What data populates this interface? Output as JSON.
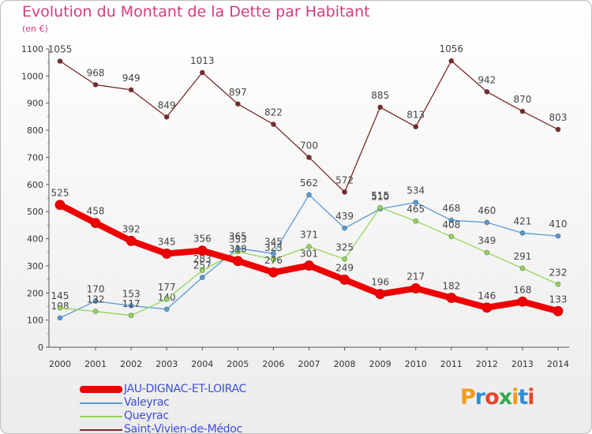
{
  "title": "Evolution du Montant de la Dette par Habitant",
  "unit": "(en €)",
  "logo": {
    "text": "Proxiti",
    "colors": [
      "#f39a1a",
      "#2c8fd6",
      "#e8452c",
      "#35a84a",
      "#f39a1a",
      "#2c8fd6",
      "#e8452c"
    ]
  },
  "chart_data": {
    "type": "line",
    "title": "Evolution du Montant de la Dette par Habitant",
    "ylabel": "(en €)",
    "xlabel": "",
    "x": [
      2000,
      2001,
      2002,
      2003,
      2004,
      2005,
      2006,
      2007,
      2008,
      2009,
      2010,
      2011,
      2012,
      2013,
      2014
    ],
    "ylim": [
      0,
      1100
    ],
    "yticks": [
      0,
      100,
      200,
      300,
      400,
      500,
      600,
      700,
      800,
      900,
      1000,
      1100
    ],
    "grid": false,
    "legend": "bottom-left",
    "series": [
      {
        "name": "JAU-DIGNAC-ET-LOIRAC",
        "color": "#ee0000",
        "style": "thick",
        "values": [
          525,
          458,
          392,
          345,
          356,
          318,
          276,
          301,
          249,
          196,
          217,
          182,
          146,
          168,
          133
        ]
      },
      {
        "name": "Valeyrac",
        "color": "#5a9ad6",
        "style": "thin",
        "values": [
          108,
          170,
          153,
          140,
          257,
          365,
          345,
          562,
          439,
          510,
          534,
          468,
          460,
          421,
          410
        ]
      },
      {
        "name": "Queyrac",
        "color": "#93d65a",
        "style": "thin",
        "values": [
          145,
          132,
          117,
          177,
          283,
          353,
          323,
          371,
          325,
          515,
          465,
          408,
          349,
          291,
          232
        ]
      },
      {
        "name": "Saint-Vivien-de-Médoc",
        "color": "#7a2a2a",
        "style": "thin",
        "values": [
          1055,
          968,
          949,
          849,
          1013,
          897,
          822,
          700,
          572,
          885,
          813,
          1056,
          942,
          870,
          803
        ]
      }
    ]
  }
}
